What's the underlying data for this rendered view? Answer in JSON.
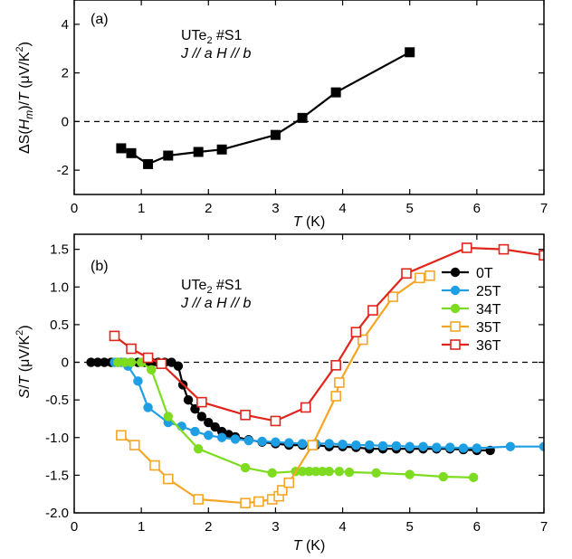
{
  "chart_data": [
    {
      "type": "line",
      "panel_label": "(a)",
      "annotation": {
        "line1": "UTe",
        "line1_sub": "2",
        "line1_suffix": " #S1",
        "line2": "J // a   H // b"
      },
      "xlabel": {
        "main": "T",
        "unit": " (K)"
      },
      "ylabel": {
        "prefix": "ΔS(H",
        "sub": "m",
        "mid": ")/T (μV/K",
        "sup": "2",
        "suffix": ")"
      },
      "xlim": [
        0,
        7
      ],
      "ylim": [
        -3,
        5
      ],
      "xticks": [
        0,
        1,
        2,
        3,
        4,
        5,
        6,
        7
      ],
      "yticks": [
        -2,
        0,
        2,
        4
      ],
      "zero_line": true,
      "series": [
        {
          "color": "#000000",
          "marker": "filled-square",
          "x": [
            0.7,
            0.85,
            1.1,
            1.4,
            1.85,
            2.2,
            3.0,
            3.4,
            3.9,
            5.0
          ],
          "y": [
            -1.1,
            -1.3,
            -1.75,
            -1.4,
            -1.25,
            -1.15,
            -0.55,
            0.15,
            1.2,
            2.85
          ]
        }
      ]
    },
    {
      "type": "line",
      "panel_label": "(b)",
      "annotation": {
        "line1": "UTe",
        "line1_sub": "2",
        "line1_suffix": " #S1",
        "line2": "J // a   H // b"
      },
      "xlabel": {
        "main": "T",
        "unit": " (K)"
      },
      "ylabel": {
        "prefix": "S/T (μV/K",
        "sup": "2",
        "suffix": ")"
      },
      "xlim": [
        0,
        7
      ],
      "ylim": [
        -2.0,
        1.7
      ],
      "xticks": [
        0,
        1,
        2,
        3,
        4,
        5,
        6,
        7
      ],
      "yticks": [
        -2.0,
        -1.5,
        -1.0,
        -0.5,
        0,
        0.5,
        1.0,
        1.5
      ],
      "ytick_labels": [
        "-2.0",
        "-1.5",
        "-1.0",
        "-0.5",
        "0",
        "0.5",
        "1.0",
        "1.5"
      ],
      "zero_line": true,
      "legend_position": "top-right",
      "series": [
        {
          "name": "0T",
          "color": "#000000",
          "marker": "filled-circle",
          "x": [
            0.25,
            0.35,
            0.45,
            0.55,
            0.65,
            0.75,
            0.85,
            0.95,
            1.05,
            1.15,
            1.25,
            1.35,
            1.45,
            1.55,
            1.62,
            1.7,
            1.8,
            1.9,
            2.0,
            2.1,
            2.2,
            2.3,
            2.4,
            2.6,
            2.8,
            3.0,
            3.2,
            3.4,
            3.6,
            3.8,
            4.0,
            4.2,
            4.4,
            4.6,
            4.8,
            5.0,
            5.2,
            5.4,
            5.6,
            5.8,
            6.0,
            6.2
          ],
          "y": [
            0,
            0,
            0,
            0,
            0,
            0,
            0,
            0,
            0,
            0,
            0,
            0,
            0,
            -0.05,
            -0.3,
            -0.5,
            -0.62,
            -0.72,
            -0.8,
            -0.86,
            -0.92,
            -0.96,
            -0.99,
            -1.03,
            -1.06,
            -1.08,
            -1.1,
            -1.1,
            -1.1,
            -1.12,
            -1.12,
            -1.13,
            -1.15,
            -1.15,
            -1.15,
            -1.15,
            -1.15,
            -1.15,
            -1.15,
            -1.16,
            -1.17,
            -1.17
          ]
        },
        {
          "name": "25T",
          "color": "#1e9fe4",
          "marker": "filled-circle",
          "x": [
            0.6,
            0.7,
            0.8,
            0.95,
            1.1,
            1.4,
            1.6,
            1.8,
            2.0,
            2.2,
            2.4,
            2.6,
            2.8,
            3.0,
            3.2,
            3.4,
            3.6,
            3.8,
            4.0,
            4.2,
            4.4,
            4.6,
            4.8,
            5.0,
            5.2,
            5.4,
            5.6,
            5.8,
            6.0,
            6.5,
            7.0
          ],
          "y": [
            0,
            0,
            -0.05,
            -0.25,
            -0.6,
            -0.8,
            -0.85,
            -0.92,
            -0.97,
            -1.0,
            -1.02,
            -1.04,
            -1.05,
            -1.06,
            -1.07,
            -1.08,
            -1.08,
            -1.08,
            -1.09,
            -1.1,
            -1.1,
            -1.11,
            -1.11,
            -1.12,
            -1.12,
            -1.13,
            -1.13,
            -1.14,
            -1.14,
            -1.12,
            -1.12
          ]
        },
        {
          "name": "34T",
          "color": "#7ddc1f",
          "marker": "filled-circle",
          "x": [
            0.65,
            0.75,
            0.85,
            1.0,
            1.15,
            1.4,
            1.85,
            2.55,
            2.95,
            3.3,
            3.4,
            3.5,
            3.6,
            3.7,
            3.8,
            3.95,
            4.1,
            4.5,
            5.0,
            5.5,
            5.95
          ],
          "y": [
            0,
            0,
            0,
            0,
            -0.1,
            -0.72,
            -1.15,
            -1.4,
            -1.47,
            -1.45,
            -1.45,
            -1.45,
            -1.45,
            -1.45,
            -1.45,
            -1.45,
            -1.46,
            -1.47,
            -1.49,
            -1.52,
            -1.53
          ]
        },
        {
          "name": "35T",
          "color": "#f5a623",
          "marker": "open-square",
          "x": [
            0.7,
            0.9,
            1.2,
            1.4,
            1.85,
            2.55,
            2.75,
            2.95,
            3.05,
            3.1,
            3.2,
            3.55,
            3.9,
            3.95,
            4.3,
            4.75,
            5.15,
            5.3
          ],
          "y": [
            -0.97,
            -1.1,
            -1.37,
            -1.55,
            -1.82,
            -1.87,
            -1.85,
            -1.82,
            -1.78,
            -1.7,
            -1.6,
            -1.1,
            -0.45,
            -0.27,
            0.3,
            0.87,
            1.12,
            1.15
          ]
        },
        {
          "name": "36T",
          "color": "#e0261c",
          "marker": "open-square",
          "x": [
            0.6,
            0.85,
            1.1,
            1.3,
            1.9,
            2.55,
            3.0,
            3.45,
            3.9,
            4.2,
            4.45,
            4.95,
            5.85,
            6.4,
            7.0
          ],
          "y": [
            0.35,
            0.18,
            0.06,
            -0.02,
            -0.53,
            -0.7,
            -0.78,
            -0.6,
            -0.04,
            0.4,
            0.69,
            1.18,
            1.52,
            1.5,
            1.42
          ]
        }
      ]
    }
  ]
}
